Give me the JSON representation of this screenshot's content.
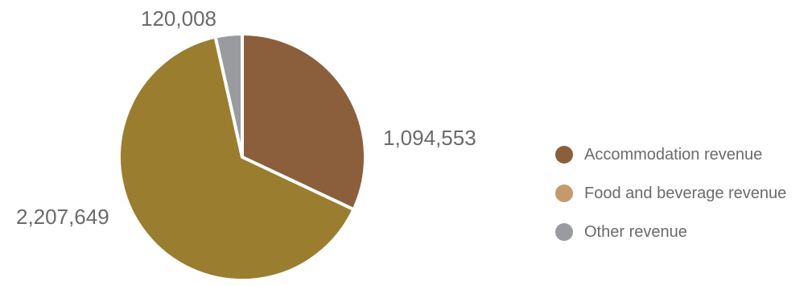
{
  "chart_data": {
    "type": "pie",
    "categories": [
      "Accommodation revenue",
      "Food and beverage revenue",
      "Other revenue"
    ],
    "values": [
      1094553,
      2207649,
      120008
    ],
    "value_labels": [
      "1,094,553",
      "2,207,649",
      "120,008"
    ],
    "colors": [
      "#8b5e3c",
      "#9a7d2e",
      "#9a9b9f"
    ],
    "legend_colors": [
      "#8b5e3c",
      "#c49a6c",
      "#9a9b9f"
    ],
    "start": "12 o'clock",
    "direction": "clockwise",
    "legend_position": "right"
  }
}
